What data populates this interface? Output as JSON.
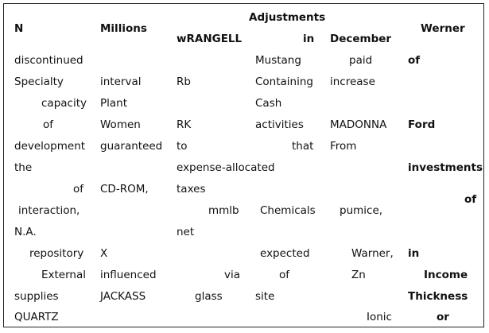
{
  "header": {
    "c1": "N",
    "c2": "Millions",
    "c3": "wRANGELL",
    "c4_top": "Adjustments",
    "c4_bottom": "in",
    "c5": "December",
    "c6": "Werner"
  },
  "rows": [
    {
      "c1": "discontinued",
      "c2": "",
      "c3": "",
      "c4": "Mustang",
      "c5": "paid",
      "c6": "of"
    },
    {
      "c1": "Specialty",
      "c2": "interval",
      "c3": "Rb",
      "c4": "Containing",
      "c5": "increase",
      "c6": ""
    },
    {
      "c1": "capacity",
      "c2": "Plant",
      "c3": "",
      "c4": "Cash",
      "c5": "",
      "c6": ""
    },
    {
      "c1": "of",
      "c2": "Women",
      "c3": "RK",
      "c4": "activities",
      "c5": "MADONNA",
      "c6": "Ford"
    },
    {
      "c1": "development",
      "c2": "guaranteed",
      "c3": "to",
      "c4": "that",
      "c5": "From",
      "c6": ""
    },
    {
      "c1": "the",
      "c2": "",
      "c3": "expense-allocated",
      "c4": "",
      "c5": "",
      "c6": "investments"
    },
    {
      "c1": "of",
      "c2": "CD-ROM,",
      "c3": "taxes",
      "c4": "",
      "c5": "",
      "c6": ""
    },
    {
      "c1": "interaction,",
      "c2": "",
      "c3": "mmlb",
      "c4": "Chemicals",
      "c5": "pumice,",
      "c6": "of"
    },
    {
      "c1": "N.A.",
      "c2": "",
      "c3": "net",
      "c4": "",
      "c5": "",
      "c6": ""
    },
    {
      "c1": "repository",
      "c2": "X",
      "c3": "",
      "c4": "expected",
      "c5": "Warner,",
      "c6": "in"
    },
    {
      "c1": "External",
      "c2": "influenced",
      "c3": "via",
      "c4": "of",
      "c5": "Zn",
      "c6": "Income"
    },
    {
      "c1": "supplies",
      "c2": "JACKASS",
      "c3": "glass",
      "c4": "site",
      "c5": "",
      "c6": "Thickness"
    },
    {
      "c1": "QUARTZ",
      "c2": "",
      "c3": "",
      "c4": "",
      "c5": "Ionic",
      "c6": "or"
    }
  ]
}
